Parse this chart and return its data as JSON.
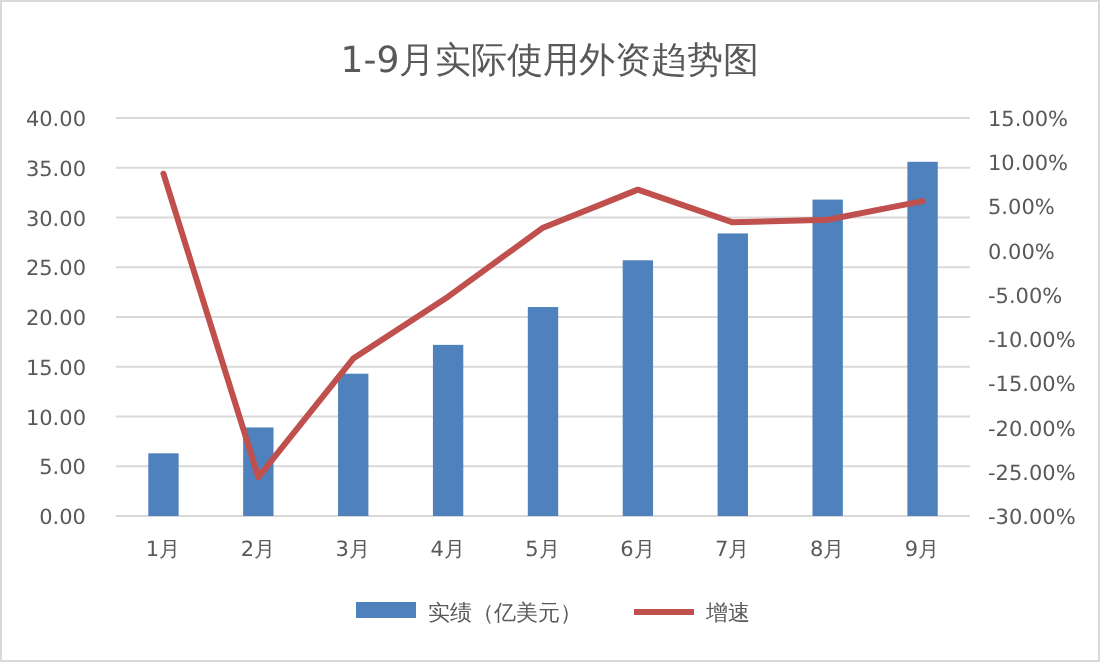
{
  "chart_data": {
    "type": "bar",
    "title": "1-9月实际使用外资趋势图",
    "categories": [
      "1月",
      "2月",
      "3月",
      "4月",
      "5月",
      "6月",
      "7月",
      "8月",
      "9月"
    ],
    "series": [
      {
        "name": "实绩（亿美元）",
        "color": "#4f81bd",
        "values": [
          6.3,
          8.9,
          14.3,
          17.2,
          21.0,
          25.7,
          28.4,
          31.8,
          35.6
        ]
      },
      {
        "name": "增速",
        "type": "line",
        "axis": "y2",
        "color": "#c0504d",
        "values": [
          8.7,
          -25.6,
          -12.2,
          -5.2,
          2.6,
          6.9,
          3.2,
          3.5,
          5.6
        ]
      }
    ],
    "ylim": [
      0,
      40
    ],
    "yticks": [
      {
        "value": 0,
        "label": "0.00"
      },
      {
        "value": 5,
        "label": "5.00"
      },
      {
        "value": 10,
        "label": "10.00"
      },
      {
        "value": 15,
        "label": "15.00"
      },
      {
        "value": 20,
        "label": "20.00"
      },
      {
        "value": 25,
        "label": "25.00"
      },
      {
        "value": 30,
        "label": "30.00"
      },
      {
        "value": 35,
        "label": "35.00"
      },
      {
        "value": 40,
        "label": "40.00"
      }
    ],
    "y2lim": [
      -30,
      15
    ],
    "y2ticks": [
      {
        "value": -30,
        "label": "-30.00%"
      },
      {
        "value": -25,
        "label": "-25.00%"
      },
      {
        "value": -20,
        "label": "-20.00%"
      },
      {
        "value": -15,
        "label": "-15.00%"
      },
      {
        "value": -10,
        "label": "-10.00%"
      },
      {
        "value": -5,
        "label": "-5.00%"
      },
      {
        "value": 0,
        "label": "0.00%"
      },
      {
        "value": 5,
        "label": "5.00%"
      },
      {
        "value": 10,
        "label": "10.00%"
      },
      {
        "value": 15,
        "label": "15.00%"
      }
    ],
    "grid": "y",
    "legend": "bottom",
    "marker": "none",
    "line_style": "solid"
  }
}
